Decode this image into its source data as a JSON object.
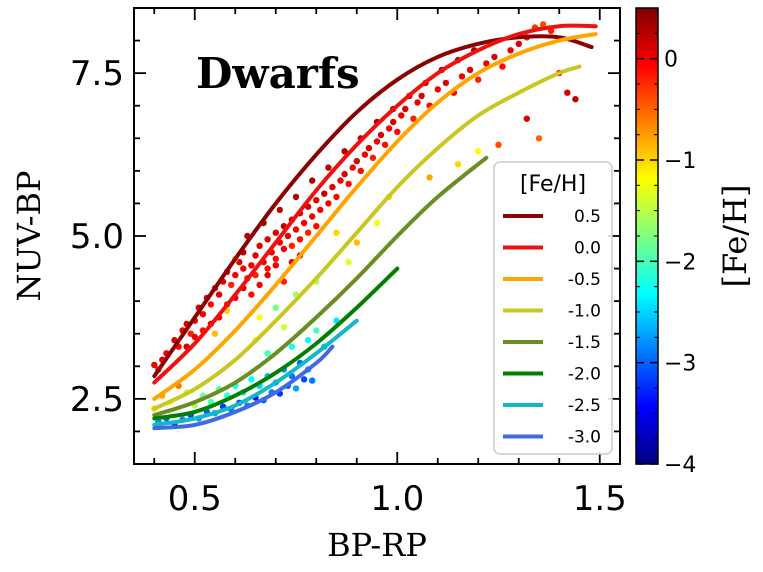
{
  "chart_data": {
    "type": "scatter",
    "title": "Dwarfs",
    "xlabel": "BP-RP",
    "ylabel": "NUV-BP",
    "xlim": [
      0.35,
      1.55
    ],
    "ylim": [
      1.5,
      8.5
    ],
    "xticks": [
      0.5,
      1.0,
      1.5
    ],
    "xtick_labels": [
      "0.5",
      "1.0",
      "1.5"
    ],
    "yticks": [
      2.5,
      5.0,
      7.5
    ],
    "ytick_labels": [
      "2.5",
      "5.0",
      "7.5"
    ],
    "colorbar": {
      "label": "[Fe/H]",
      "range": [
        -4,
        0.5
      ],
      "ticks": [
        0,
        -1,
        -2,
        -3,
        -4
      ],
      "tick_labels": [
        "0",
        "−1",
        "−2",
        "−3",
        "−4"
      ],
      "colormap": "jet"
    },
    "legend": {
      "title": "[Fe/H]",
      "placement": "lower-right"
    },
    "series": [
      {
        "name": "0.5",
        "color": "#8b0000",
        "x": [
          0.4,
          0.5,
          0.6,
          0.7,
          0.8,
          0.9,
          1.0,
          1.1,
          1.2,
          1.3,
          1.4,
          1.48
        ],
        "y": [
          2.85,
          3.75,
          4.65,
          5.5,
          6.25,
          6.9,
          7.4,
          7.75,
          7.95,
          8.05,
          8.05,
          7.9
        ]
      },
      {
        "name": "0.0",
        "color": "#ee1111",
        "x": [
          0.4,
          0.5,
          0.6,
          0.7,
          0.8,
          0.9,
          1.0,
          1.1,
          1.2,
          1.3,
          1.4,
          1.49
        ],
        "y": [
          2.75,
          3.35,
          4.1,
          4.9,
          5.7,
          6.4,
          7.0,
          7.5,
          7.85,
          8.1,
          8.22,
          8.22
        ]
      },
      {
        "name": "-0.5",
        "color": "#ffa500",
        "x": [
          0.4,
          0.5,
          0.6,
          0.7,
          0.8,
          0.9,
          1.0,
          1.1,
          1.2,
          1.3,
          1.4,
          1.49
        ],
        "y": [
          2.5,
          2.95,
          3.55,
          4.25,
          5.0,
          5.75,
          6.45,
          7.05,
          7.5,
          7.8,
          8.0,
          8.1
        ]
      },
      {
        "name": "-1.0",
        "color": "#c8c820",
        "x": [
          0.4,
          0.5,
          0.6,
          0.7,
          0.8,
          0.9,
          1.0,
          1.1,
          1.2,
          1.3,
          1.4,
          1.45
        ],
        "y": [
          2.35,
          2.65,
          3.1,
          3.7,
          4.35,
          5.05,
          5.75,
          6.35,
          6.85,
          7.2,
          7.5,
          7.6
        ]
      },
      {
        "name": "-1.5",
        "color": "#6b8e23",
        "x": [
          0.4,
          0.5,
          0.6,
          0.7,
          0.8,
          0.9,
          1.0,
          1.1,
          1.22
        ],
        "y": [
          2.25,
          2.45,
          2.75,
          3.2,
          3.75,
          4.35,
          5.0,
          5.6,
          6.2
        ]
      },
      {
        "name": "-2.0",
        "color": "#008000",
        "x": [
          0.4,
          0.5,
          0.6,
          0.7,
          0.8,
          0.9,
          1.0
        ],
        "y": [
          2.2,
          2.3,
          2.55,
          2.9,
          3.35,
          3.9,
          4.5
        ]
      },
      {
        "name": "-2.5",
        "color": "#12b8c4",
        "x": [
          0.4,
          0.5,
          0.6,
          0.7,
          0.8,
          0.9
        ],
        "y": [
          2.1,
          2.2,
          2.4,
          2.75,
          3.2,
          3.7
        ]
      },
      {
        "name": "-3.0",
        "color": "#4169e1",
        "x": [
          0.4,
          0.5,
          0.6,
          0.7,
          0.8,
          0.84
        ],
        "y": [
          2.05,
          2.1,
          2.3,
          2.6,
          3.05,
          3.3
        ]
      }
    ],
    "points": [
      [
        0.4,
        3.02,
        0.0
      ],
      [
        0.41,
        2.95,
        -0.1
      ],
      [
        0.42,
        3.1,
        0.1
      ],
      [
        0.43,
        3.2,
        0.0
      ],
      [
        0.45,
        3.4,
        0.1
      ],
      [
        0.46,
        3.3,
        -0.1
      ],
      [
        0.47,
        3.55,
        0.0
      ],
      [
        0.48,
        3.65,
        0.1
      ],
      [
        0.49,
        3.5,
        -0.2
      ],
      [
        0.5,
        3.7,
        0.0
      ],
      [
        0.51,
        3.9,
        0.1
      ],
      [
        0.52,
        3.8,
        0.0
      ],
      [
        0.53,
        4.05,
        0.1
      ],
      [
        0.54,
        3.95,
        -0.1
      ],
      [
        0.55,
        4.2,
        0.0
      ],
      [
        0.56,
        4.1,
        0.1
      ],
      [
        0.57,
        4.3,
        0.0
      ],
      [
        0.58,
        4.45,
        0.1
      ],
      [
        0.59,
        4.25,
        -0.2
      ],
      [
        0.6,
        4.4,
        0.0
      ],
      [
        0.61,
        4.6,
        0.1
      ],
      [
        0.62,
        4.5,
        0.0
      ],
      [
        0.62,
        4.75,
        0.2
      ],
      [
        0.63,
        4.35,
        -0.1
      ],
      [
        0.64,
        4.55,
        0.0
      ],
      [
        0.65,
        4.7,
        0.1
      ],
      [
        0.65,
        4.4,
        -0.2
      ],
      [
        0.66,
        4.85,
        0.1
      ],
      [
        0.67,
        4.6,
        0.0
      ],
      [
        0.68,
        4.95,
        0.1
      ],
      [
        0.68,
        4.5,
        -0.1
      ],
      [
        0.69,
        4.75,
        0.0
      ],
      [
        0.7,
        5.05,
        0.1
      ],
      [
        0.7,
        4.65,
        -0.1
      ],
      [
        0.71,
        4.9,
        0.0
      ],
      [
        0.72,
        5.15,
        0.2
      ],
      [
        0.72,
        4.8,
        0.0
      ],
      [
        0.73,
        5.0,
        0.1
      ],
      [
        0.74,
        5.25,
        0.1
      ],
      [
        0.74,
        4.85,
        -0.2
      ],
      [
        0.75,
        5.1,
        0.0
      ],
      [
        0.76,
        5.35,
        0.1
      ],
      [
        0.76,
        4.95,
        -0.1
      ],
      [
        0.77,
        5.2,
        0.0
      ],
      [
        0.78,
        5.45,
        0.1
      ],
      [
        0.78,
        5.05,
        -0.2
      ],
      [
        0.79,
        5.3,
        0.0
      ],
      [
        0.8,
        5.55,
        0.1
      ],
      [
        0.8,
        5.15,
        -0.1
      ],
      [
        0.81,
        5.4,
        0.0
      ],
      [
        0.82,
        5.65,
        0.2
      ],
      [
        0.83,
        5.5,
        0.0
      ],
      [
        0.84,
        5.75,
        0.1
      ],
      [
        0.85,
        5.6,
        -0.1
      ],
      [
        0.86,
        5.85,
        0.0
      ],
      [
        0.87,
        5.95,
        0.1
      ],
      [
        0.88,
        5.8,
        -0.1
      ],
      [
        0.89,
        6.05,
        0.0
      ],
      [
        0.9,
        6.15,
        0.1
      ],
      [
        0.91,
        6.0,
        -0.1
      ],
      [
        0.92,
        6.25,
        0.0
      ],
      [
        0.93,
        6.35,
        0.1
      ],
      [
        0.94,
        6.2,
        -0.2
      ],
      [
        0.95,
        6.45,
        0.0
      ],
      [
        0.96,
        6.55,
        0.1
      ],
      [
        0.97,
        6.4,
        -0.1
      ],
      [
        0.98,
        6.65,
        0.0
      ],
      [
        0.99,
        6.75,
        0.1
      ],
      [
        1.0,
        6.6,
        -0.1
      ],
      [
        1.01,
        6.85,
        0.0
      ],
      [
        1.02,
        6.95,
        0.1
      ],
      [
        1.04,
        6.8,
        -0.2
      ],
      [
        1.05,
        7.05,
        0.0
      ],
      [
        1.06,
        7.15,
        0.1
      ],
      [
        1.08,
        7.0,
        -0.1
      ],
      [
        1.1,
        7.25,
        0.0
      ],
      [
        1.12,
        7.35,
        0.1
      ],
      [
        1.14,
        7.2,
        -0.1
      ],
      [
        1.16,
        7.45,
        0.0
      ],
      [
        1.18,
        7.55,
        0.1
      ],
      [
        1.2,
        7.4,
        -0.2
      ],
      [
        1.22,
        7.65,
        0.0
      ],
      [
        1.24,
        7.75,
        0.1
      ],
      [
        1.26,
        7.6,
        -0.1
      ],
      [
        1.28,
        7.85,
        0.0
      ],
      [
        1.3,
        7.95,
        0.1
      ],
      [
        1.32,
        8.05,
        0.0
      ],
      [
        1.34,
        8.2,
        -0.3
      ],
      [
        1.36,
        8.25,
        -0.4
      ],
      [
        1.38,
        8.15,
        -0.2
      ],
      [
        1.4,
        7.5,
        0.0
      ],
      [
        1.42,
        7.2,
        0.1
      ],
      [
        1.44,
        7.1,
        0.2
      ],
      [
        1.32,
        6.8,
        0.1
      ],
      [
        1.35,
        6.5,
        -0.5
      ],
      [
        1.25,
        6.4,
        -0.4
      ],
      [
        1.2,
        6.3,
        -1.2
      ],
      [
        1.15,
        6.1,
        -1.0
      ],
      [
        1.08,
        5.9,
        -0.8
      ],
      [
        0.98,
        5.6,
        -1.0
      ],
      [
        0.95,
        5.2,
        -1.2
      ],
      [
        0.9,
        4.9,
        -0.9
      ],
      [
        0.85,
        5.05,
        -1.0
      ],
      [
        0.88,
        4.6,
        -1.3
      ],
      [
        0.8,
        4.3,
        -1.5
      ],
      [
        0.75,
        4.1,
        -1.6
      ],
      [
        0.7,
        3.9,
        -1.8
      ],
      [
        0.72,
        3.6,
        -1.4
      ],
      [
        0.66,
        3.75,
        -1.2
      ],
      [
        0.6,
        4.65,
        -0.8
      ],
      [
        0.58,
        3.85,
        -1.0
      ],
      [
        0.55,
        3.5,
        -0.9
      ],
      [
        0.65,
        3.4,
        -1.3
      ],
      [
        0.68,
        3.2,
        -2.0
      ],
      [
        0.74,
        3.3,
        -2.2
      ],
      [
        0.78,
        3.4,
        -2.3
      ],
      [
        0.8,
        3.55,
        -2.0
      ],
      [
        0.85,
        3.7,
        -2.4
      ],
      [
        0.82,
        3.3,
        -2.6
      ],
      [
        0.4,
        2.35,
        -1.0
      ],
      [
        0.42,
        2.55,
        -0.8
      ],
      [
        0.44,
        2.45,
        -1.2
      ],
      [
        0.46,
        2.7,
        -0.6
      ],
      [
        0.48,
        2.6,
        -1.4
      ],
      [
        0.5,
        2.4,
        -1.6
      ],
      [
        0.52,
        2.55,
        -1.8
      ],
      [
        0.54,
        2.45,
        -2.0
      ],
      [
        0.56,
        2.65,
        -1.9
      ],
      [
        0.58,
        2.55,
        -2.1
      ],
      [
        0.6,
        2.7,
        -2.2
      ],
      [
        0.62,
        2.6,
        -2.4
      ],
      [
        0.64,
        2.8,
        -2.3
      ],
      [
        0.66,
        2.7,
        -2.5
      ],
      [
        0.68,
        2.85,
        -2.6
      ],
      [
        0.7,
        2.75,
        -2.7
      ],
      [
        0.72,
        2.95,
        -2.8
      ],
      [
        0.74,
        2.85,
        -2.9
      ],
      [
        0.76,
        3.05,
        -3.0
      ],
      [
        0.78,
        2.95,
        -2.8
      ],
      [
        0.41,
        2.15,
        -2.8
      ],
      [
        0.43,
        2.2,
        -3.0
      ],
      [
        0.45,
        2.12,
        -3.2
      ],
      [
        0.47,
        2.18,
        -2.9
      ],
      [
        0.49,
        2.25,
        -3.1
      ],
      [
        0.51,
        2.2,
        -2.8
      ],
      [
        0.53,
        2.3,
        -3.0
      ],
      [
        0.55,
        2.28,
        -2.7
      ],
      [
        0.57,
        2.38,
        -3.2
      ],
      [
        0.59,
        2.34,
        -2.9
      ],
      [
        0.61,
        2.44,
        -3.1
      ],
      [
        0.63,
        2.4,
        -2.8
      ],
      [
        0.65,
        2.52,
        -3.3
      ],
      [
        0.67,
        2.48,
        -3.0
      ],
      [
        0.69,
        2.6,
        -2.9
      ],
      [
        0.71,
        2.58,
        -3.2
      ],
      [
        0.73,
        2.7,
        -3.0
      ],
      [
        0.75,
        2.66,
        -2.7
      ],
      [
        0.77,
        2.8,
        -3.1
      ],
      [
        0.79,
        2.78,
        -2.9
      ],
      [
        0.64,
        4.1,
        -0.1
      ],
      [
        0.66,
        4.25,
        0.0
      ],
      [
        0.68,
        4.4,
        0.1
      ],
      [
        0.7,
        4.55,
        0.0
      ],
      [
        0.72,
        4.3,
        -0.2
      ],
      [
        0.74,
        4.6,
        0.0
      ],
      [
        0.76,
        4.7,
        0.1
      ],
      [
        0.6,
        4.05,
        0.0
      ],
      [
        0.62,
        4.2,
        0.1
      ],
      [
        0.58,
        3.95,
        -0.1
      ],
      [
        0.56,
        3.75,
        0.0
      ],
      [
        0.54,
        3.65,
        0.1
      ],
      [
        0.52,
        3.55,
        -0.1
      ],
      [
        0.5,
        3.45,
        0.0
      ],
      [
        0.48,
        3.3,
        0.1
      ],
      [
        0.63,
        5.0,
        0.2
      ],
      [
        0.67,
        5.2,
        0.3
      ],
      [
        0.71,
        5.4,
        0.2
      ],
      [
        0.75,
        5.6,
        0.3
      ],
      [
        0.79,
        5.85,
        0.3
      ],
      [
        0.83,
        6.05,
        0.2
      ],
      [
        0.87,
        6.3,
        0.3
      ],
      [
        0.91,
        6.5,
        0.2
      ],
      [
        0.95,
        6.75,
        0.3
      ],
      [
        0.99,
        6.95,
        0.2
      ],
      [
        1.03,
        7.15,
        0.3
      ],
      [
        1.07,
        7.35,
        0.2
      ],
      [
        1.11,
        7.55,
        0.3
      ],
      [
        1.15,
        7.7,
        0.2
      ],
      [
        1.19,
        7.85,
        0.3
      ]
    ]
  }
}
